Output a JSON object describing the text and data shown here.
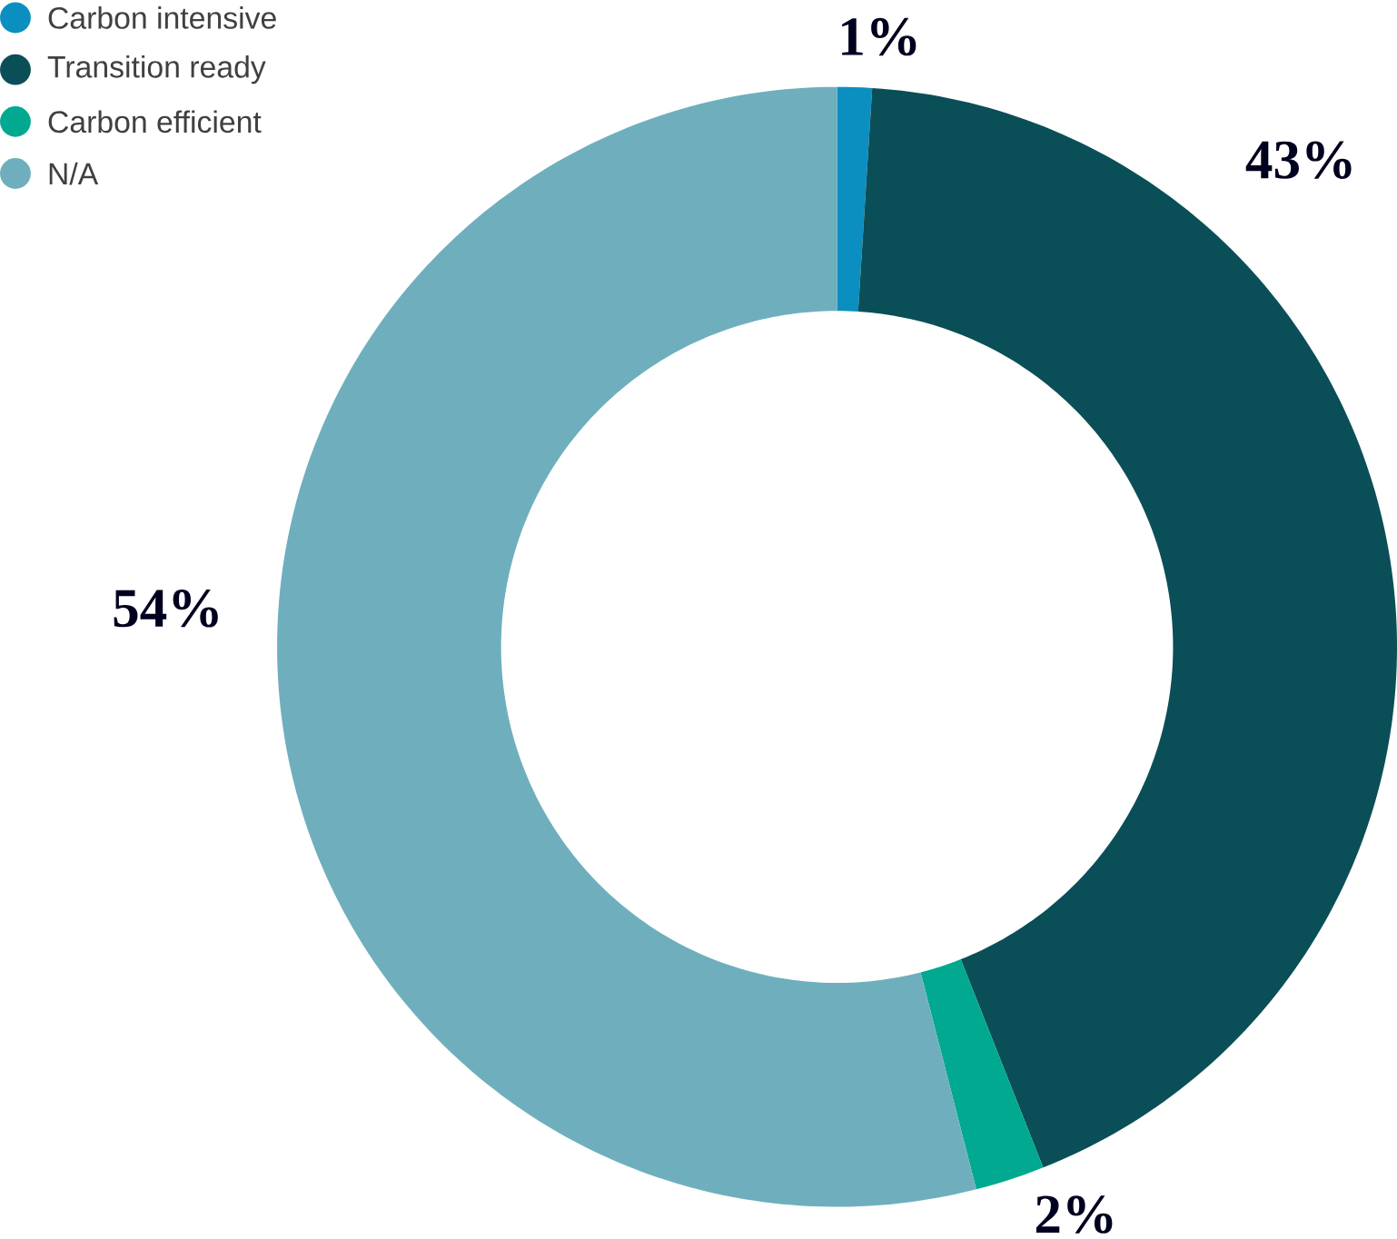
{
  "chart_data": {
    "type": "donut",
    "categories": [
      "Carbon intensive",
      "Transition ready",
      "Carbon efficient",
      "N/A"
    ],
    "values": [
      1,
      43,
      2,
      54
    ],
    "value_labels": [
      "1%",
      "43%",
      "2%",
      "54%"
    ],
    "colors": [
      "#0b8fc1",
      "#0a4f57",
      "#00a98f",
      "#6fafbd"
    ],
    "legend": "top left"
  }
}
